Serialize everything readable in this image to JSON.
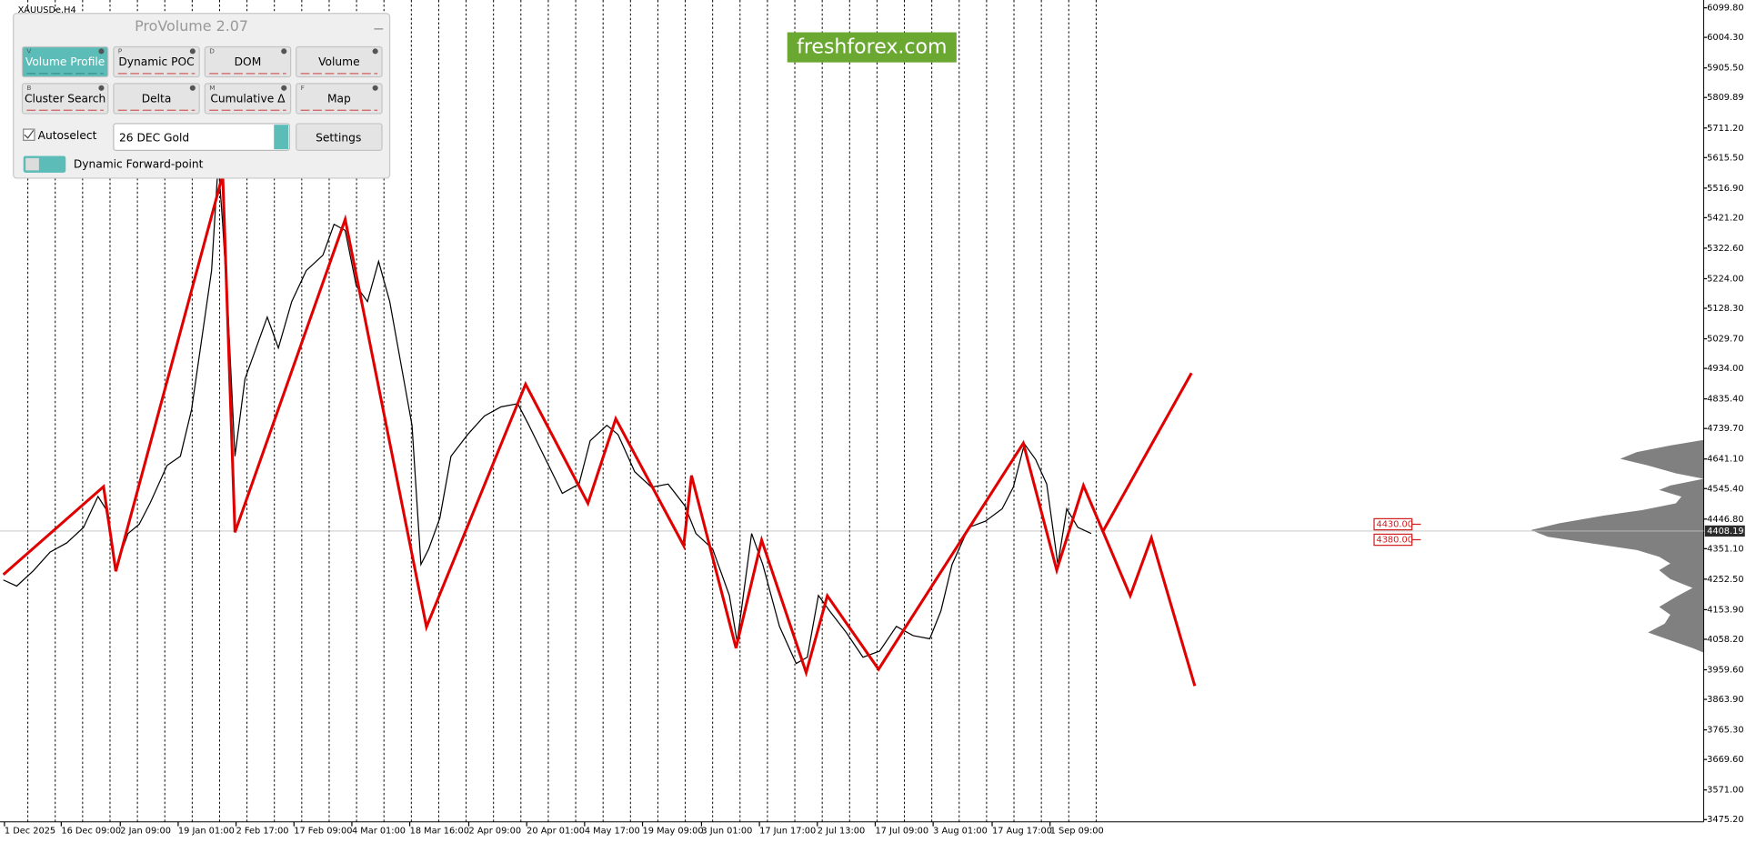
{
  "chart_data": {
    "type": "line",
    "title": "XAUUSDe,H4",
    "xlim": [
      0,
      1530
    ],
    "ylim": [
      3475.2,
      6099.8
    ],
    "xticks": [
      {
        "value": 4,
        "label": "1 Dec 2025"
      },
      {
        "value": 55,
        "label": "16 Dec 09:00"
      },
      {
        "value": 108,
        "label": "2 Jan 09:00"
      },
      {
        "value": 160,
        "label": "19 Jan 01:00"
      },
      {
        "value": 212,
        "label": "2 Feb 17:00"
      },
      {
        "value": 264,
        "label": "17 Feb 09:00"
      },
      {
        "value": 316,
        "label": "4 Mar 01:00"
      },
      {
        "value": 368,
        "label": "18 Mar 16:00"
      },
      {
        "value": 421,
        "label": "2 Apr 09:00"
      },
      {
        "value": 473,
        "label": "20 Apr 01:00"
      },
      {
        "value": 525,
        "label": "4 May 17:00"
      },
      {
        "value": 577,
        "label": "19 May 09:00"
      },
      {
        "value": 630,
        "label": "3 Jun 01:00"
      },
      {
        "value": 682,
        "label": "17 Jun 17:00"
      },
      {
        "value": 734,
        "label": "2 Jul 13:00"
      },
      {
        "value": 786,
        "label": "17 Jul 09:00"
      },
      {
        "value": 838,
        "label": "3 Aug 01:00"
      },
      {
        "value": 891,
        "label": "17 Aug 17:00"
      },
      {
        "value": 943,
        "label": "1 Sep 09:00"
      }
    ],
    "yticks": [
      {
        "value": 6099.8,
        "label": "6099.80"
      },
      {
        "value": 6004.3,
        "label": "6004.30"
      },
      {
        "value": 5905.5,
        "label": "5905.50"
      },
      5809.89,
      {
        "value": 5711.2,
        "label": "5711.20"
      },
      {
        "value": 5615.5,
        "label": "5615.50"
      },
      {
        "value": 5516.9,
        "label": "5516.90"
      },
      {
        "value": 5421.2,
        "label": "5421.20"
      },
      {
        "value": 5322.6,
        "label": "5322.60"
      },
      {
        "value": 5224,
        "label": "5224.00"
      },
      {
        "value": 5128.3,
        "label": "5128.30"
      },
      {
        "value": 5029.7,
        "label": "5029.70"
      },
      {
        "value": 4934,
        "label": "4934.00"
      },
      {
        "value": 4835.4,
        "label": "4835.40"
      },
      {
        "value": 4739.7,
        "label": "4739.70"
      },
      {
        "value": 4641.1,
        "label": "4641.10"
      },
      {
        "value": 4545.4,
        "label": "4545.40"
      },
      {
        "value": 4446.8,
        "label": "4446.80"
      },
      {
        "value": 4351.1,
        "label": "4351.10"
      },
      {
        "value": 4252.5,
        "label": "4252.50"
      },
      {
        "value": 4153.9,
        "label": "4153.90"
      },
      {
        "value": 4058.2,
        "label": "4058.20"
      },
      {
        "value": 3959.6,
        "label": "3959.60"
      },
      {
        "value": 3863.9,
        "label": "3863.90"
      },
      {
        "value": 3765.3,
        "label": "3765.30"
      },
      {
        "value": 3669.6,
        "label": "3669.60"
      },
      {
        "value": 3571,
        "label": "3571.00"
      },
      {
        "value": 3475.2,
        "label": "3475.20"
      }
    ],
    "last_price": 4408.19,
    "levels": [
      {
        "value": 4430,
        "label": "4430.00"
      },
      {
        "value": 4380,
        "label": "4380.00"
      }
    ],
    "series": [
      {
        "color": "#000000",
        "x": [
          3,
          15,
          30,
          45,
          60,
          75,
          88,
          95,
          104,
          115,
          125,
          135,
          150,
          162,
          172,
          182,
          190,
          196,
          200,
          205,
          211,
          220,
          230,
          240,
          250,
          262,
          275,
          290,
          300,
          310,
          320,
          330,
          340,
          350,
          360,
          370,
          378,
          385,
          395,
          405,
          420,
          435,
          450,
          465,
          475,
          490,
          505,
          520,
          530,
          545,
          555,
          570,
          585,
          600,
          615,
          625,
          640,
          655,
          662,
          675,
          685,
          700,
          715,
          725,
          735,
          745,
          760,
          775,
          790,
          805,
          820,
          835,
          845,
          855,
          870,
          885,
          900,
          910,
          920,
          930,
          940,
          950,
          958,
          968,
          980
        ],
        "values": [
          4250,
          4230,
          4280,
          4340,
          4370,
          4420,
          4520,
          4480,
          4290,
          4400,
          4430,
          4500,
          4620,
          4650,
          4800,
          5050,
          5250,
          5600,
          5400,
          5100,
          4650,
          4900,
          5000,
          5100,
          5000,
          5150,
          5250,
          5300,
          5400,
          5380,
          5200,
          5150,
          5280,
          5150,
          4950,
          4750,
          4300,
          4350,
          4450,
          4650,
          4720,
          4780,
          4810,
          4820,
          4750,
          4640,
          4530,
          4560,
          4700,
          4750,
          4720,
          4600,
          4550,
          4560,
          4490,
          4400,
          4350,
          4200,
          4050,
          4400,
          4300,
          4100,
          3980,
          4000,
          4200,
          4150,
          4080,
          4000,
          4020,
          4100,
          4070,
          4060,
          4150,
          4300,
          4420,
          4440,
          4480,
          4550,
          4690,
          4640,
          4560,
          4300,
          4480,
          4420,
          4400
        ]
      },
      {
        "color": "#e00000",
        "x": [
          3,
          93,
          104,
          200,
          211,
          310,
          383,
          472,
          528,
          553,
          614,
          621,
          661,
          684,
          724,
          743,
          789,
          919,
          949,
          973,
          1015,
          1034,
          1073
        ],
        "values": [
          4267.3,
          4551.7,
          4278.0,
          5559.8,
          4404.1,
          5415.7,
          4098.0,
          4882.9,
          4497.7,
          4771.3,
          4360.9,
          4587.7,
          4029.6,
          4378.9,
          3950.4,
          4198.8,
          3961.2,
          4692.1,
          4281.6,
          4555.3,
          4198.8,
          4386.1,
          3907.2
        ]
      },
      {
        "color": "#e00000",
        "x": [
          990,
          1070
        ],
        "values": [
          4404.1,
          4918.9
        ]
      }
    ]
  },
  "watermark": "freshforex.com",
  "panel": {
    "title": "ProVolume 2.07",
    "buttons": [
      {
        "label": "Volume Profile",
        "key": "V",
        "active": true
      },
      {
        "label": "Dynamic POC",
        "key": "P",
        "active": false
      },
      {
        "label": "DOM",
        "key": "D",
        "active": false
      },
      {
        "label": "Volume",
        "active": false
      },
      {
        "label": "Cluster Search",
        "key": "B",
        "active": false
      },
      {
        "label": "Delta",
        "active": false
      },
      {
        "label": "Cumulative Δ",
        "key": "M",
        "active": false
      },
      {
        "label": "Map",
        "key": "F",
        "active": false
      }
    ],
    "autoselect": "Autoselect",
    "instrument": "26 DEC Gold",
    "settings": "Settings",
    "forward_point": "Dynamic Forward-point"
  }
}
